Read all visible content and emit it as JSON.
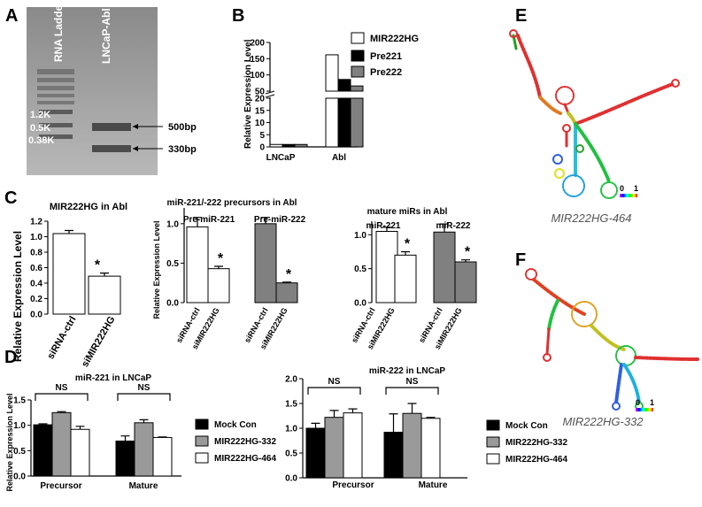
{
  "panel_labels": {
    "a": "A",
    "b": "B",
    "c": "C",
    "d": "D",
    "e": "E",
    "f": "F"
  },
  "gel": {
    "lane_labels": [
      "RNA Ladder",
      "LNCaP-Abl"
    ],
    "ladder_marks": [
      "1.2K",
      "0.5K",
      "0.38K"
    ],
    "band_marks": [
      "500bp",
      "330bp"
    ]
  },
  "structures": {
    "e_caption": "MIR222HG-464",
    "f_caption": "MIR222HG-332",
    "scale_min": "0",
    "scale_max": "1"
  },
  "chart_data": [
    {
      "id": "B",
      "type": "bar",
      "title": "",
      "ylabel": "Relative Expression Level",
      "xlabel": "",
      "categories": [
        "LNCaP",
        "Abl"
      ],
      "series": [
        {
          "name": "MIR222HG",
          "values": [
            1,
            162
          ],
          "color": "#ffffff"
        },
        {
          "name": "Pre221",
          "values": [
            1,
            86
          ],
          "color": "#000000"
        },
        {
          "name": "Pre222",
          "values": [
            1,
            66
          ],
          "color": "#808080"
        }
      ],
      "axis_break": [
        20,
        50
      ],
      "yticks": [
        "0",
        "5",
        "10",
        "15",
        "20",
        "50",
        "100",
        "150",
        "200"
      ],
      "legend": "top-right"
    },
    {
      "id": "C1",
      "type": "bar",
      "title": "MIR222HG in Abl",
      "ylabel": "Relative Expression Level",
      "xlabel": "",
      "categories": [
        "siRNA-ctrl",
        "siMIR222HG"
      ],
      "values": [
        1.04,
        0.49
      ],
      "errors": [
        0.04,
        0.04
      ],
      "annotations": [
        "",
        "*"
      ],
      "ylim": [
        0,
        1.2
      ],
      "yticks": [
        "0.0",
        "0.2",
        "0.4",
        "0.6",
        "0.8",
        "1.0",
        "1.2"
      ]
    },
    {
      "id": "C2",
      "type": "bar",
      "title": "miR-221/-222 precursors in Abl",
      "ylabel": "Relative Expression Level",
      "xlabel": "",
      "group_labels": [
        "Pre-miR-221",
        "Pre-miR-222"
      ],
      "categories": [
        "siRNA-ctrl",
        "siMIR222HG",
        "siRNA-ctrl",
        "siMIR222HG"
      ],
      "values": [
        0.96,
        0.43,
        1.0,
        0.25
      ],
      "errors": [
        0.12,
        0.03,
        0.08,
        0.01
      ],
      "annotations": [
        "",
        "*",
        "",
        "*"
      ],
      "ylim": [
        0,
        1.2
      ],
      "yticks": [
        "0.0",
        "0.5",
        "1.0"
      ]
    },
    {
      "id": "C3",
      "type": "bar",
      "title": "mature miRs in Abl",
      "ylabel": "",
      "xlabel": "",
      "group_labels": [
        "miR-221",
        "miR-222"
      ],
      "categories": [
        "siRNA-ctrl",
        "siMIR222HG",
        "siRNA-ctrl",
        "siMIR222HG"
      ],
      "values": [
        1.05,
        0.7,
        1.04,
        0.6
      ],
      "errors": [
        0.06,
        0.05,
        0.12,
        0.03
      ],
      "annotations": [
        "",
        "*",
        "",
        "*"
      ],
      "ylim": [
        0,
        1.2
      ],
      "yticks": [
        "0.0",
        "0.5",
        "1.0"
      ]
    },
    {
      "id": "D1",
      "type": "bar",
      "title": "miR-221 in LNCaP",
      "ylabel": "Relative Expression Level",
      "xlabel": "",
      "categories": [
        "Precursor",
        "Mature"
      ],
      "series": [
        {
          "name": "Mock Con",
          "values": [
            1.01,
            0.69
          ],
          "errors": [
            0.02,
            0.1
          ],
          "color": "#000000"
        },
        {
          "name": "MIR222HG-332",
          "values": [
            1.25,
            1.05
          ],
          "errors": [
            0.02,
            0.06
          ],
          "color": "#9a9a9a"
        },
        {
          "name": "MIR222HG-464",
          "values": [
            0.92,
            0.76
          ],
          "errors": [
            0.06,
            0.01
          ],
          "color": "#ffffff"
        }
      ],
      "brackets": [
        "NS",
        "NS"
      ],
      "ylim": [
        0,
        1.5
      ],
      "yticks": [
        "0.0",
        "0.5",
        "1.0",
        "1.5"
      ],
      "legend": "right"
    },
    {
      "id": "D2",
      "type": "bar",
      "title": "miR-222 in LNCaP",
      "ylabel": "",
      "xlabel": "",
      "categories": [
        "Precursor",
        "Mature"
      ],
      "series": [
        {
          "name": "Mock Con",
          "values": [
            1.0,
            0.92
          ],
          "errors": [
            0.1,
            0.37
          ],
          "color": "#000000"
        },
        {
          "name": "MIR222HG-332",
          "values": [
            1.22,
            1.3
          ],
          "errors": [
            0.14,
            0.2
          ],
          "color": "#9a9a9a"
        },
        {
          "name": "MIR222HG-464",
          "values": [
            1.31,
            1.2
          ],
          "errors": [
            0.08,
            0.02
          ],
          "color": "#ffffff"
        }
      ],
      "brackets": [
        "NS",
        "NS"
      ],
      "ylim": [
        0,
        2.0
      ],
      "yticks": [
        "0.0",
        "0.5",
        "1.0",
        "1.5",
        "2.0"
      ],
      "legend": "right"
    }
  ]
}
